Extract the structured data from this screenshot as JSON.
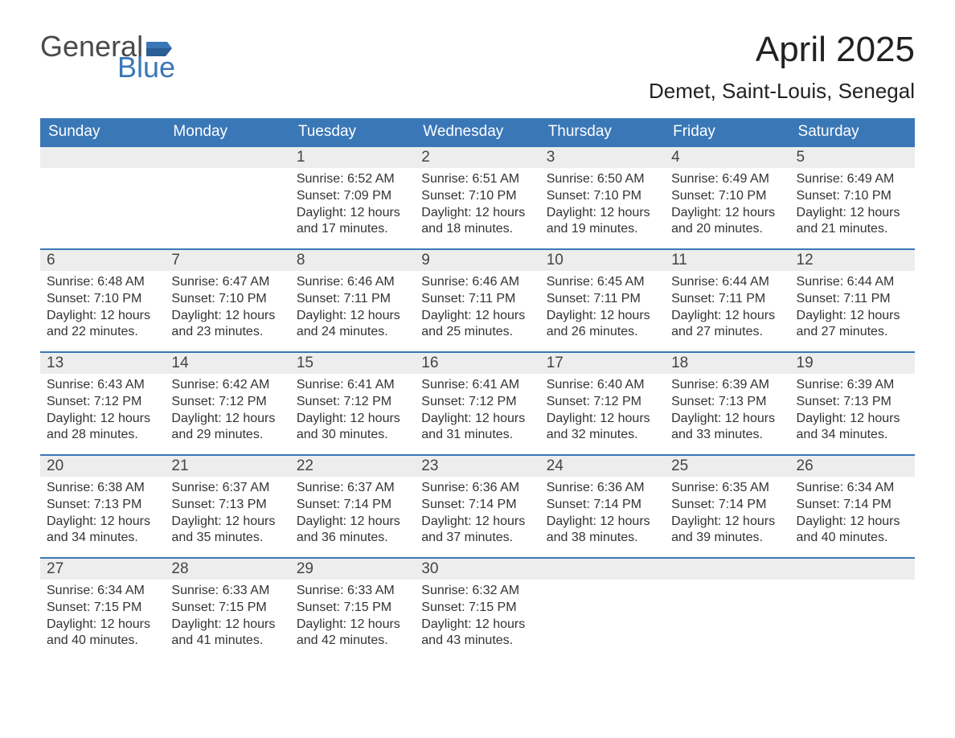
{
  "logo": {
    "word1": "General",
    "word2": "Blue",
    "flag_color": "#3a77b7"
  },
  "title": "April 2025",
  "location": "Demet, Saint-Louis, Senegal",
  "colors": {
    "header_bg": "#3a77b7",
    "header_text": "#ffffff",
    "daynum_bg": "#ededed",
    "week_border": "#3a77b7",
    "body_text": "#333333",
    "page_bg": "#ffffff"
  },
  "typography": {
    "title_fontsize": 44,
    "location_fontsize": 26,
    "header_fontsize": 19,
    "daynum_fontsize": 19,
    "body_fontsize": 16
  },
  "day_headers": [
    "Sunday",
    "Monday",
    "Tuesday",
    "Wednesday",
    "Thursday",
    "Friday",
    "Saturday"
  ],
  "labels": {
    "sunrise": "Sunrise:",
    "sunset": "Sunset:",
    "daylight_prefix": "Daylight:",
    "hours_word": "hours",
    "minutes_suffix": "minutes."
  },
  "weeks": [
    [
      null,
      null,
      {
        "n": "1",
        "sunrise": "6:52 AM",
        "sunset": "7:09 PM",
        "daylight_h": "12",
        "daylight_m": "17"
      },
      {
        "n": "2",
        "sunrise": "6:51 AM",
        "sunset": "7:10 PM",
        "daylight_h": "12",
        "daylight_m": "18"
      },
      {
        "n": "3",
        "sunrise": "6:50 AM",
        "sunset": "7:10 PM",
        "daylight_h": "12",
        "daylight_m": "19"
      },
      {
        "n": "4",
        "sunrise": "6:49 AM",
        "sunset": "7:10 PM",
        "daylight_h": "12",
        "daylight_m": "20"
      },
      {
        "n": "5",
        "sunrise": "6:49 AM",
        "sunset": "7:10 PM",
        "daylight_h": "12",
        "daylight_m": "21"
      }
    ],
    [
      {
        "n": "6",
        "sunrise": "6:48 AM",
        "sunset": "7:10 PM",
        "daylight_h": "12",
        "daylight_m": "22"
      },
      {
        "n": "7",
        "sunrise": "6:47 AM",
        "sunset": "7:10 PM",
        "daylight_h": "12",
        "daylight_m": "23"
      },
      {
        "n": "8",
        "sunrise": "6:46 AM",
        "sunset": "7:11 PM",
        "daylight_h": "12",
        "daylight_m": "24"
      },
      {
        "n": "9",
        "sunrise": "6:46 AM",
        "sunset": "7:11 PM",
        "daylight_h": "12",
        "daylight_m": "25"
      },
      {
        "n": "10",
        "sunrise": "6:45 AM",
        "sunset": "7:11 PM",
        "daylight_h": "12",
        "daylight_m": "26"
      },
      {
        "n": "11",
        "sunrise": "6:44 AM",
        "sunset": "7:11 PM",
        "daylight_h": "12",
        "daylight_m": "27"
      },
      {
        "n": "12",
        "sunrise": "6:44 AM",
        "sunset": "7:11 PM",
        "daylight_h": "12",
        "daylight_m": "27"
      }
    ],
    [
      {
        "n": "13",
        "sunrise": "6:43 AM",
        "sunset": "7:12 PM",
        "daylight_h": "12",
        "daylight_m": "28"
      },
      {
        "n": "14",
        "sunrise": "6:42 AM",
        "sunset": "7:12 PM",
        "daylight_h": "12",
        "daylight_m": "29"
      },
      {
        "n": "15",
        "sunrise": "6:41 AM",
        "sunset": "7:12 PM",
        "daylight_h": "12",
        "daylight_m": "30"
      },
      {
        "n": "16",
        "sunrise": "6:41 AM",
        "sunset": "7:12 PM",
        "daylight_h": "12",
        "daylight_m": "31"
      },
      {
        "n": "17",
        "sunrise": "6:40 AM",
        "sunset": "7:12 PM",
        "daylight_h": "12",
        "daylight_m": "32"
      },
      {
        "n": "18",
        "sunrise": "6:39 AM",
        "sunset": "7:13 PM",
        "daylight_h": "12",
        "daylight_m": "33"
      },
      {
        "n": "19",
        "sunrise": "6:39 AM",
        "sunset": "7:13 PM",
        "daylight_h": "12",
        "daylight_m": "34"
      }
    ],
    [
      {
        "n": "20",
        "sunrise": "6:38 AM",
        "sunset": "7:13 PM",
        "daylight_h": "12",
        "daylight_m": "34"
      },
      {
        "n": "21",
        "sunrise": "6:37 AM",
        "sunset": "7:13 PM",
        "daylight_h": "12",
        "daylight_m": "35"
      },
      {
        "n": "22",
        "sunrise": "6:37 AM",
        "sunset": "7:14 PM",
        "daylight_h": "12",
        "daylight_m": "36"
      },
      {
        "n": "23",
        "sunrise": "6:36 AM",
        "sunset": "7:14 PM",
        "daylight_h": "12",
        "daylight_m": "37"
      },
      {
        "n": "24",
        "sunrise": "6:36 AM",
        "sunset": "7:14 PM",
        "daylight_h": "12",
        "daylight_m": "38"
      },
      {
        "n": "25",
        "sunrise": "6:35 AM",
        "sunset": "7:14 PM",
        "daylight_h": "12",
        "daylight_m": "39"
      },
      {
        "n": "26",
        "sunrise": "6:34 AM",
        "sunset": "7:14 PM",
        "daylight_h": "12",
        "daylight_m": "40"
      }
    ],
    [
      {
        "n": "27",
        "sunrise": "6:34 AM",
        "sunset": "7:15 PM",
        "daylight_h": "12",
        "daylight_m": "40"
      },
      {
        "n": "28",
        "sunrise": "6:33 AM",
        "sunset": "7:15 PM",
        "daylight_h": "12",
        "daylight_m": "41"
      },
      {
        "n": "29",
        "sunrise": "6:33 AM",
        "sunset": "7:15 PM",
        "daylight_h": "12",
        "daylight_m": "42"
      },
      {
        "n": "30",
        "sunrise": "6:32 AM",
        "sunset": "7:15 PM",
        "daylight_h": "12",
        "daylight_m": "43"
      },
      null,
      null,
      null
    ]
  ]
}
